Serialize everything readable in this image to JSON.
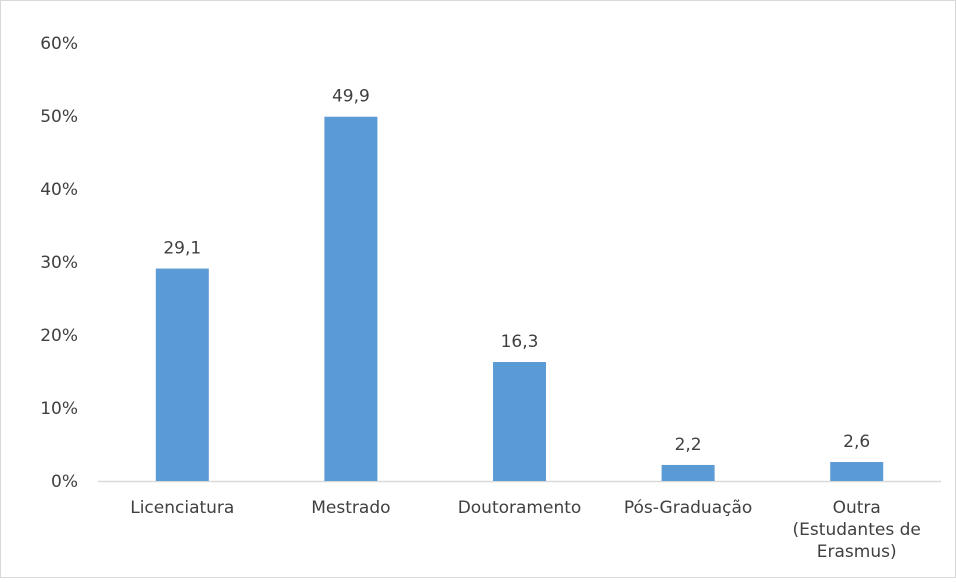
{
  "chart_data": {
    "type": "bar",
    "categories": [
      [
        "Licenciatura"
      ],
      [
        "Mestrado"
      ],
      [
        "Doutoramento"
      ],
      [
        "Pós-Graduação"
      ],
      [
        "Outra",
        "(Estudantes de",
        "Erasmus)"
      ]
    ],
    "values": [
      29.1,
      49.9,
      16.3,
      2.2,
      2.6
    ],
    "data_labels": [
      "29,1",
      "49,9",
      "16,3",
      "2,2",
      "2,6"
    ],
    "y_ticks": [
      0,
      10,
      20,
      30,
      40,
      50,
      60
    ],
    "y_tick_labels": [
      "0%",
      "10%",
      "20%",
      "30%",
      "40%",
      "50%",
      "60%"
    ],
    "ylim": [
      0,
      60
    ],
    "title": "",
    "xlabel": "",
    "ylabel": "",
    "grid": false,
    "legend": "none",
    "bar_color": "#5b9bd5",
    "axis_color": "#d9d9d9",
    "text_color": "#404040"
  }
}
